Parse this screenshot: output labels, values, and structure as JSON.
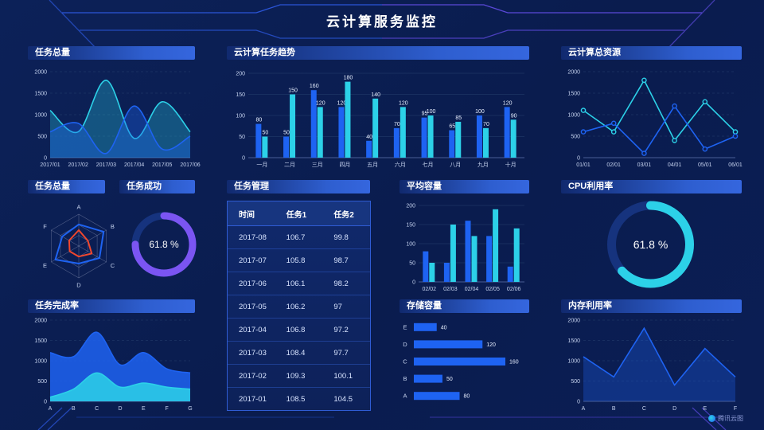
{
  "header": {
    "title": "云计算服务监控",
    "watermark": "腾讯云图"
  },
  "colors": {
    "blue": "#1E63F2",
    "cyan": "#2CD1E8",
    "purple": "#7B55F2",
    "red": "#F0472E",
    "grid": "#27406F",
    "axis": "#4A5E96",
    "axis_text": "#C6D3EF",
    "label_text": "#E8F0FF",
    "track_dark": "#16337E",
    "bg": "#0B1E55"
  },
  "panels": {
    "task_total_line": {
      "title": "任务总量"
    },
    "task_trend": {
      "title": "云计算任务趋势"
    },
    "total_resource": {
      "title": "云计算总资源"
    },
    "task_total_radar": {
      "title": "任务总量"
    },
    "task_success": {
      "title": "任务成功",
      "value": "61.8 %"
    },
    "task_table": {
      "title": "任务管理",
      "columns": [
        "时间",
        "任务1",
        "任务2"
      ],
      "rows": [
        [
          "2017-08",
          "106.7",
          "99.8"
        ],
        [
          "2017-07",
          "105.8",
          "98.7"
        ],
        [
          "2017-06",
          "106.1",
          "98.2"
        ],
        [
          "2017-05",
          "106.2",
          "97"
        ],
        [
          "2017-04",
          "106.8",
          "97.2"
        ],
        [
          "2017-03",
          "108.4",
          "97.7"
        ],
        [
          "2017-02",
          "109.3",
          "100.1"
        ],
        [
          "2017-01",
          "108.5",
          "104.5"
        ]
      ]
    },
    "avg_capacity": {
      "title": "平均容量"
    },
    "cpu": {
      "title": "CPU利用率",
      "value": "61.8 %"
    },
    "completion": {
      "title": "任务完成率"
    },
    "storage": {
      "title": "存储容量"
    },
    "memory": {
      "title": "内存利用率"
    }
  },
  "chart_data": [
    {
      "id": "chart-task-total",
      "type": "line",
      "title": "任务总量",
      "x": [
        "2017/01",
        "2017/02",
        "2017/03",
        "2017/04",
        "2017/05",
        "2017/06"
      ],
      "ylim": [
        0,
        2000
      ],
      "yticks": [
        0,
        500,
        1000,
        1500,
        2000
      ],
      "grid": "dashed",
      "series": [
        {
          "name": "cyan-series",
          "color": "cyan",
          "smooth": true,
          "area": 0.3,
          "values": [
            1100,
            600,
            1800,
            450,
            1300,
            600
          ]
        },
        {
          "name": "blue-series",
          "color": "blue",
          "smooth": true,
          "area": 0.35,
          "values": [
            600,
            800,
            100,
            1200,
            200,
            500
          ]
        }
      ]
    },
    {
      "id": "chart-task-trend",
      "type": "bar",
      "title": "云计算任务趋势",
      "categories": [
        "一月",
        "二月",
        "三月",
        "四月",
        "五月",
        "六月",
        "七月",
        "八月",
        "九月",
        "十月"
      ],
      "ylim": [
        0,
        200
      ],
      "yticks": [
        0,
        50,
        100,
        150,
        200
      ],
      "labels": true,
      "series": [
        {
          "name": "series-1",
          "color": "blue",
          "values": [
            80,
            50,
            160,
            120,
            40,
            70,
            95,
            65,
            100,
            120
          ]
        },
        {
          "name": "series-2",
          "color": "cyan",
          "values": [
            50,
            150,
            120,
            180,
            140,
            120,
            100,
            85,
            70,
            90
          ]
        }
      ]
    },
    {
      "id": "chart-total-resource",
      "type": "line",
      "title": "云计算总资源",
      "x": [
        "01/01",
        "02/01",
        "03/01",
        "04/01",
        "05/01",
        "06/01"
      ],
      "ylim": [
        0,
        2000
      ],
      "yticks": [
        0,
        500,
        1000,
        1500,
        2000
      ],
      "grid": "dashed",
      "markers": true,
      "series": [
        {
          "name": "cyan-series",
          "color": "cyan",
          "smooth": false,
          "values": [
            1100,
            600,
            1800,
            400,
            1300,
            600
          ]
        },
        {
          "name": "blue-series",
          "color": "blue",
          "smooth": false,
          "values": [
            600,
            800,
            100,
            1200,
            200,
            500
          ]
        }
      ]
    },
    {
      "id": "chart-radar",
      "type": "radar",
      "title": "任务总量",
      "axes": [
        "A",
        "B",
        "C",
        "D",
        "E",
        "F"
      ],
      "max": 100,
      "levels": 3,
      "series": [
        {
          "name": "outer",
          "color": "blue",
          "values": [
            68,
            90,
            75,
            55,
            85,
            60
          ]
        },
        {
          "name": "inner",
          "color": "red",
          "values": [
            50,
            33,
            47,
            33,
            33,
            35
          ]
        }
      ]
    },
    {
      "id": "chart-task-success",
      "type": "donut",
      "title": "任务成功",
      "percent": 61.8,
      "display": "61.8 %",
      "arc_fraction": 0.75,
      "color": "purple"
    },
    {
      "id": "chart-avg-capacity",
      "type": "bar",
      "title": "平均容量",
      "categories": [
        "02/02",
        "02/03",
        "02/04",
        "02/05",
        "02/06"
      ],
      "ylim": [
        0,
        200
      ],
      "yticks": [
        0,
        50,
        100,
        150,
        200
      ],
      "labels": false,
      "series": [
        {
          "name": "series-1",
          "color": "blue",
          "values": [
            80,
            50,
            160,
            120,
            40
          ]
        },
        {
          "name": "series-2",
          "color": "cyan",
          "values": [
            50,
            150,
            120,
            190,
            140
          ]
        }
      ]
    },
    {
      "id": "chart-cpu",
      "type": "donut",
      "title": "CPU利用率",
      "percent": 61.8,
      "display": "61.8 %",
      "arc_fraction": 0.63,
      "color": "cyan"
    },
    {
      "id": "chart-completion",
      "type": "line",
      "title": "任务完成率",
      "x": [
        "A",
        "B",
        "C",
        "D",
        "E",
        "F",
        "G"
      ],
      "ylim": [
        0,
        2000
      ],
      "yticks": [
        0,
        500,
        1000,
        1500,
        2000
      ],
      "grid": "dashed",
      "series": [
        {
          "name": "blue-area",
          "color": "blue",
          "smooth": true,
          "area": 0.85,
          "values": [
            1200,
            1100,
            1700,
            900,
            1200,
            800,
            700
          ]
        },
        {
          "name": "cyan-area",
          "color": "cyan",
          "smooth": true,
          "area": 0.85,
          "values": [
            100,
            300,
            700,
            350,
            450,
            350,
            300
          ]
        }
      ]
    },
    {
      "id": "chart-storage",
      "type": "hbar",
      "title": "存储容量",
      "categories": [
        "E",
        "D",
        "C",
        "B",
        "A"
      ],
      "values": [
        40,
        120,
        160,
        50,
        80
      ],
      "max": 160,
      "color": "blue",
      "labels": true
    },
    {
      "id": "chart-memory",
      "type": "line",
      "title": "内存利用率",
      "x": [
        "A",
        "B",
        "C",
        "D",
        "E",
        "F"
      ],
      "ylim": [
        0,
        2000
      ],
      "yticks": [
        0,
        500,
        1000,
        1500,
        2000
      ],
      "grid": "dashed",
      "series": [
        {
          "name": "blue-series",
          "color": "blue",
          "smooth": false,
          "area": 0.3,
          "values": [
            1100,
            600,
            1800,
            400,
            1300,
            600
          ]
        }
      ]
    }
  ]
}
